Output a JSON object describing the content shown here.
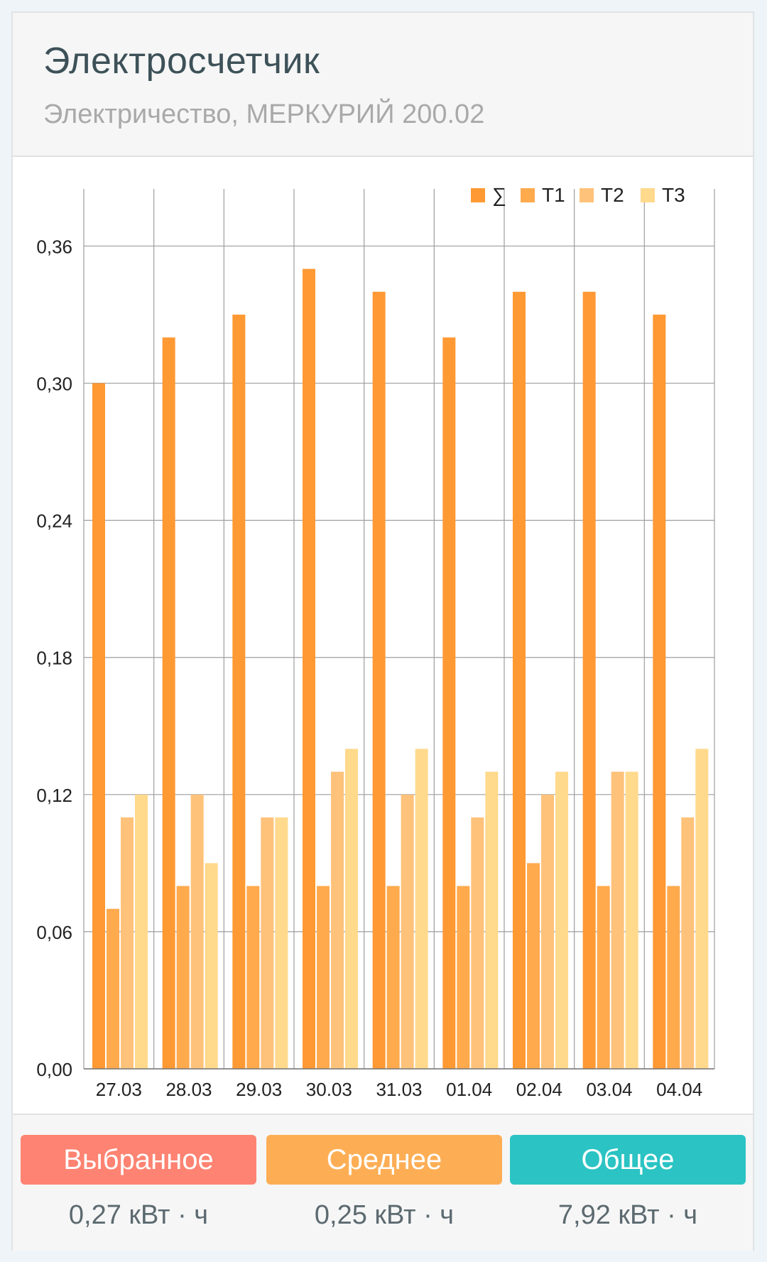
{
  "header": {
    "title": "Электросчетчик",
    "subtitle": "Электричество, МЕРКУРИЙ 200.02"
  },
  "chart_data": {
    "type": "bar",
    "categories": [
      "27.03",
      "28.03",
      "29.03",
      "30.03",
      "31.03",
      "01.04",
      "02.04",
      "03.04",
      "04.04"
    ],
    "series": [
      {
        "name": "∑",
        "color": "#ff9933",
        "values": [
          0.3,
          0.32,
          0.33,
          0.35,
          0.34,
          0.32,
          0.34,
          0.34,
          0.33
        ]
      },
      {
        "name": "T1",
        "color": "#ffaa4d",
        "values": [
          0.07,
          0.08,
          0.08,
          0.08,
          0.08,
          0.08,
          0.09,
          0.08,
          0.08
        ]
      },
      {
        "name": "T2",
        "color": "#ffc27a",
        "values": [
          0.11,
          0.12,
          0.11,
          0.13,
          0.12,
          0.11,
          0.12,
          0.13,
          0.11
        ]
      },
      {
        "name": "T3",
        "color": "#ffd98c",
        "values": [
          0.12,
          0.09,
          0.11,
          0.14,
          0.14,
          0.13,
          0.13,
          0.13,
          0.14
        ]
      }
    ],
    "yticks": [
      "0,00",
      "0,06",
      "0,12",
      "0,18",
      "0,24",
      "0,30",
      "0,36"
    ],
    "ylim": [
      0,
      0.385
    ],
    "grid": true,
    "legend": "top-right"
  },
  "stats": [
    {
      "label": "Выбранное",
      "value": "0,27 кВт · ч",
      "color": "#fe8372"
    },
    {
      "label": "Среднее",
      "value": "0,25 кВт · ч",
      "color": "#fdae55"
    },
    {
      "label": "Общее",
      "value": "7,92 кВт · ч",
      "color": "#2bc3c3"
    }
  ]
}
